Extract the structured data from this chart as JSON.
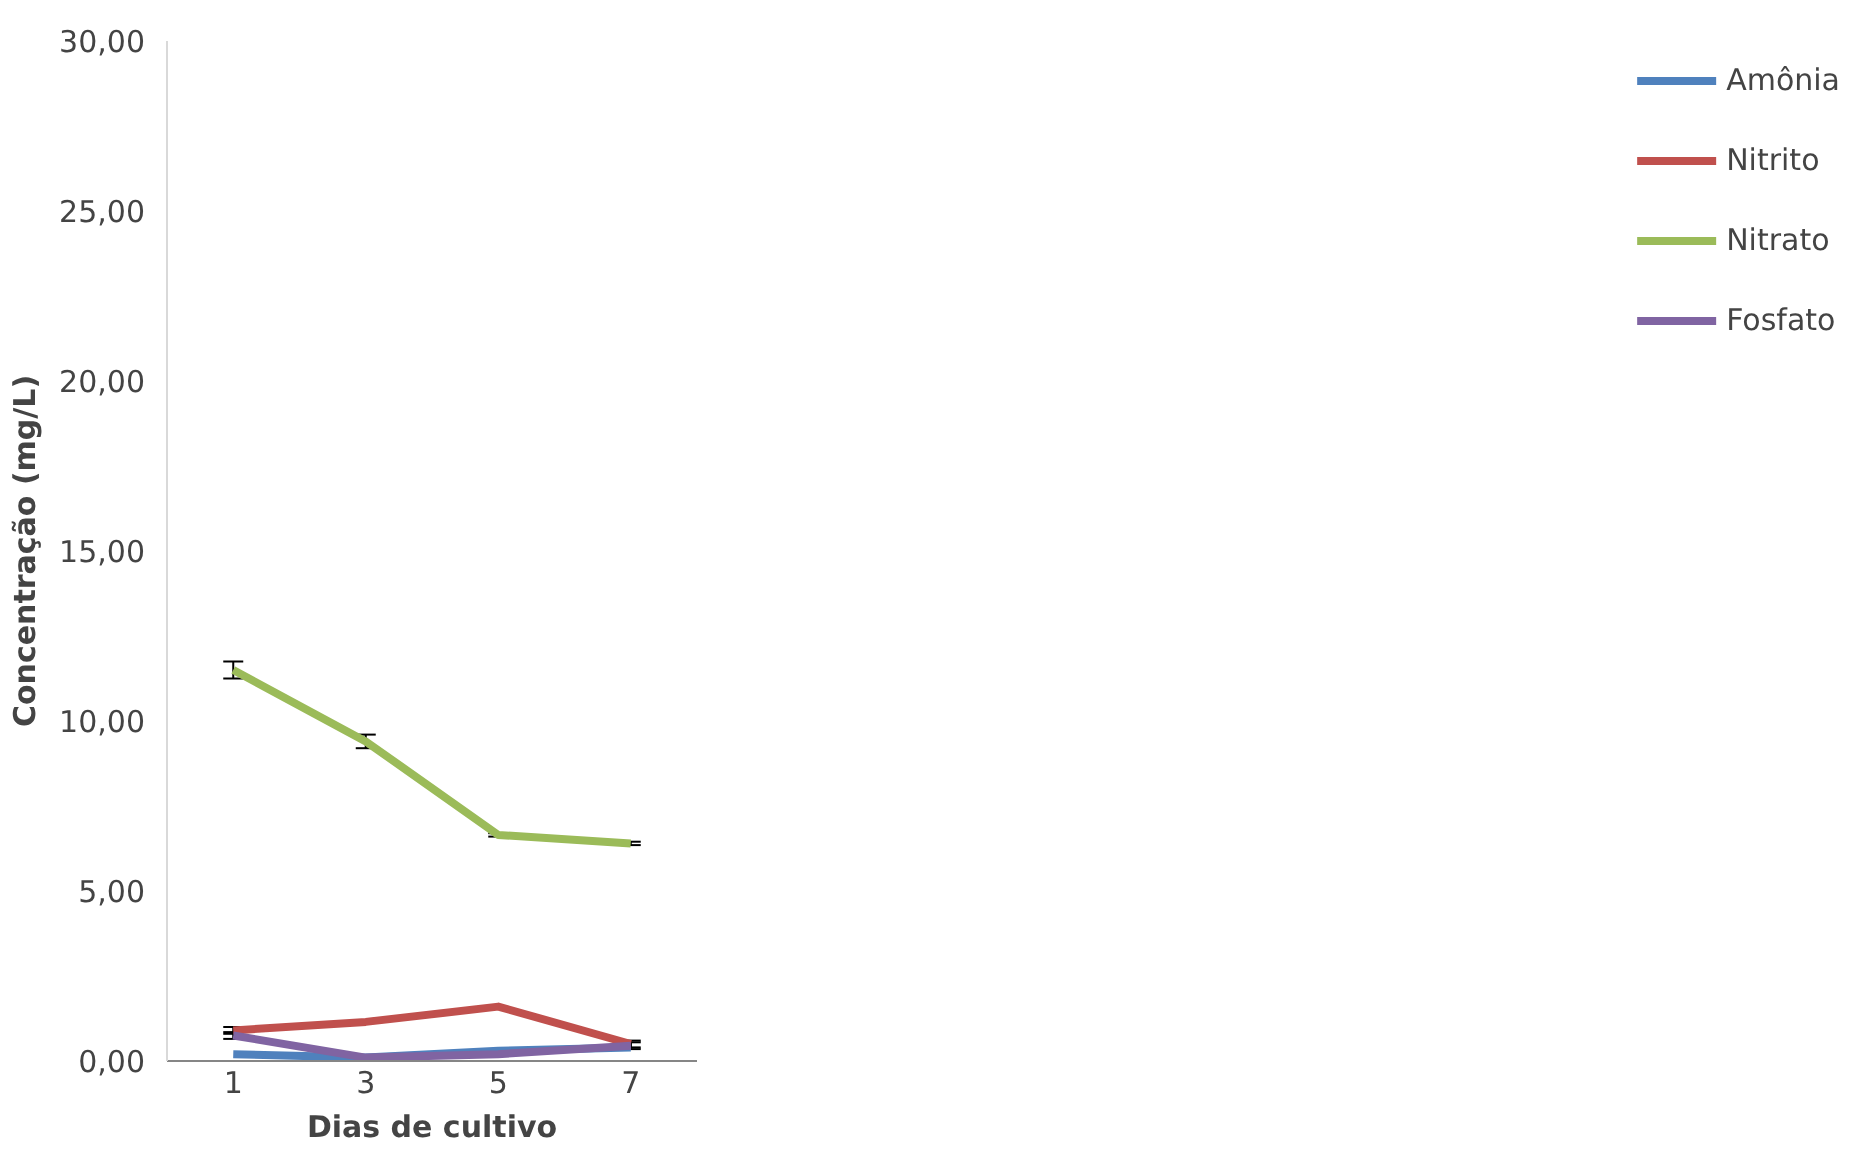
{
  "chart_data": {
    "type": "line",
    "xlabel": "Dias de cultivo",
    "ylabel": "Concentração (mg/L)",
    "categories": [
      "1",
      "3",
      "5",
      "7"
    ],
    "series": [
      {
        "name": "Amônia",
        "color": "#4f81bd",
        "values": [
          0.2,
          0.1,
          0.3,
          0.4
        ]
      },
      {
        "name": "Nitrito",
        "color": "#c0504d",
        "values": [
          0.9,
          1.15,
          1.6,
          0.5
        ],
        "errors": [
          0.1,
          null,
          null,
          0.1
        ]
      },
      {
        "name": "Nitrato",
        "color": "#9bbb59",
        "values": [
          11.5,
          9.4,
          6.65,
          6.4
        ],
        "errors": [
          0.25,
          0.2,
          0.05,
          0.05
        ]
      },
      {
        "name": "Fosfato",
        "color": "#8064a2",
        "values": [
          0.75,
          0.1,
          0.2,
          0.45
        ],
        "errors": [
          0.1,
          null,
          null,
          0.1
        ]
      }
    ],
    "ylim": [
      0,
      30
    ],
    "yticks": [
      {
        "value": 0,
        "label": "0,00"
      },
      {
        "value": 5,
        "label": "5,00"
      },
      {
        "value": 10,
        "label": "10,00"
      },
      {
        "value": 15,
        "label": "15,00"
      },
      {
        "value": 20,
        "label": "20,00"
      },
      {
        "value": 25,
        "label": "25,00"
      },
      {
        "value": 30,
        "label": "30,00"
      }
    ],
    "grid": false,
    "legend": "right",
    "marker": "none",
    "line_style": "solid"
  }
}
